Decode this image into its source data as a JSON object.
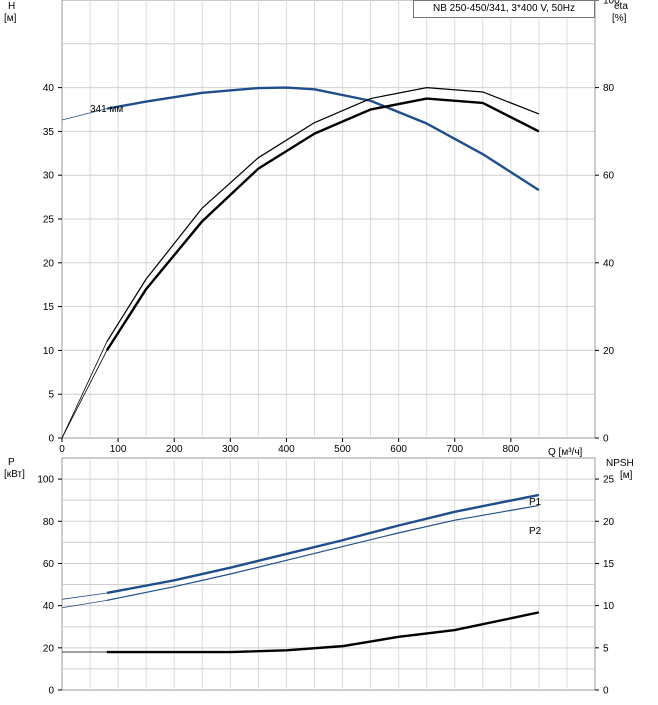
{
  "chart_data": [
    {
      "type": "line",
      "title": "NB 250-450/341, 3*400 V, 50Hz",
      "ylabel": "H",
      "ylabel_unit": "[м]",
      "y2label": "eta",
      "y2label_unit": "[%]",
      "xlabel": "Q [м³/ч]",
      "xlim": [
        0,
        950
      ],
      "ylim": [
        0,
        50
      ],
      "y2lim": [
        0,
        100
      ],
      "x_ticks": [
        "0",
        "100",
        "200",
        "300",
        "400",
        "500",
        "600",
        "700",
        "800"
      ],
      "y_ticks": [
        "0",
        "5",
        "10",
        "15",
        "20",
        "25",
        "30",
        "35",
        "40"
      ],
      "y2_ticks": [
        "0",
        "20",
        "40",
        "60",
        "80",
        "100"
      ],
      "grid": true,
      "series": [
        {
          "name": "341 мм",
          "color": "#1f4e8c",
          "axis": "left",
          "x": [
            0,
            80,
            150,
            250,
            350,
            400,
            450,
            550,
            650,
            750,
            850
          ],
          "values": [
            36.3,
            37.6,
            38.4,
            39.4,
            39.95,
            40.0,
            39.8,
            38.5,
            35.9,
            32.4,
            28.3
          ]
        },
        {
          "name": "",
          "color": "#000000",
          "axis": "right",
          "x": [
            0,
            80,
            150,
            250,
            350,
            450,
            550,
            650,
            750,
            850
          ],
          "values": [
            0,
            22.0,
            36.3,
            52.5,
            64.0,
            72.0,
            77.5,
            80.0,
            79.0,
            74.0
          ]
        },
        {
          "name": "",
          "color": "#000000",
          "axis": "right",
          "x": [
            0,
            80,
            150,
            250,
            350,
            450,
            550,
            650,
            750,
            850
          ],
          "values": [
            0,
            20.0,
            34.0,
            49.5,
            61.5,
            69.5,
            75.0,
            77.5,
            76.5,
            70.0
          ]
        }
      ]
    },
    {
      "type": "line",
      "ylabel": "P",
      "ylabel_unit": "[кВт]",
      "y2label": "NPSH",
      "y2label_unit": "[м]",
      "xlim": [
        0,
        950
      ],
      "ylim": [
        0,
        110
      ],
      "y2lim": [
        0,
        27.5
      ],
      "y_ticks": [
        "0",
        "20",
        "40",
        "60",
        "80",
        "100"
      ],
      "y2_ticks": [
        "0",
        "5",
        "10",
        "15",
        "20",
        "25"
      ],
      "grid": true,
      "series": [
        {
          "name": "P1",
          "color": "#1f4e8c",
          "axis": "left",
          "x": [
            0,
            80,
            200,
            300,
            400,
            500,
            600,
            700,
            850
          ],
          "values": [
            43.0,
            46.0,
            52.0,
            58.0,
            64.5,
            71.0,
            78.0,
            84.5,
            92.5
          ]
        },
        {
          "name": "P2",
          "color": "#1f4e8c",
          "axis": "left",
          "x": [
            0,
            80,
            200,
            300,
            400,
            500,
            600,
            700,
            850
          ],
          "values": [
            39.0,
            42.5,
            49.0,
            55.0,
            61.5,
            68.0,
            74.5,
            80.5,
            87.5
          ]
        },
        {
          "name": "",
          "color": "#000000",
          "axis": "right",
          "x": [
            0,
            80,
            200,
            300,
            400,
            500,
            600,
            700,
            850
          ],
          "values": [
            4.5,
            4.5,
            4.5,
            4.5,
            4.7,
            5.2,
            6.3,
            7.1,
            9.2
          ]
        }
      ]
    }
  ]
}
